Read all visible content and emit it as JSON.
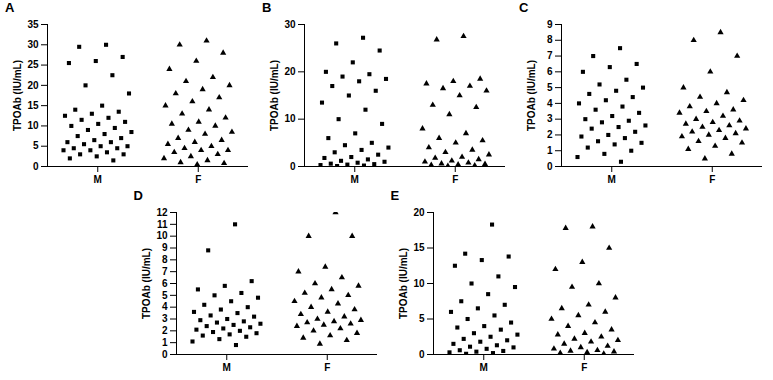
{
  "chart_data": [
    {
      "type": "scatter",
      "title": "A",
      "y_label": "TPOAb (IU/mL)",
      "ylim": [
        0,
        35
      ],
      "yticks": [
        0,
        5,
        10,
        15,
        20,
        25,
        30,
        35
      ],
      "series": [
        {
          "name": "M",
          "marker": "square",
          "color": "#000000",
          "values": [
            30,
            29.5,
            27,
            26,
            25.5,
            22.5,
            20,
            18,
            15,
            14,
            13.5,
            13,
            12.5,
            12,
            11.5,
            11,
            10.5,
            10,
            9.5,
            9,
            8.5,
            8,
            7.5,
            7,
            6.5,
            6,
            6,
            5.5,
            5,
            5,
            4.5,
            4.5,
            4,
            4,
            3.5,
            3,
            3,
            2.5,
            2,
            1.5
          ]
        },
        {
          "name": "F",
          "marker": "triangle",
          "color": "#000000",
          "values": [
            31,
            30,
            28,
            26,
            24,
            22,
            21,
            20,
            19,
            18,
            17,
            16,
            15,
            14,
            13,
            12,
            11,
            10.5,
            10,
            9,
            8.5,
            8,
            7,
            6.5,
            6,
            5.5,
            5,
            4.5,
            4,
            4,
            3.5,
            3,
            2.5,
            2,
            1.5,
            1,
            0.8,
            0.5
          ]
        }
      ]
    },
    {
      "type": "scatter",
      "title": "B",
      "y_label": "TPOAb (IU/mL)",
      "ylim": [
        0,
        30
      ],
      "yticks": [
        0,
        10,
        20,
        30
      ],
      "series": [
        {
          "name": "M",
          "marker": "square",
          "color": "#000000",
          "values": [
            27.2,
            26,
            24.5,
            22,
            20,
            19.5,
            19,
            18.5,
            18,
            17,
            16,
            15,
            13.5,
            12,
            10,
            9,
            7,
            6,
            5,
            4.5,
            4,
            3.5,
            3,
            2.5,
            2,
            1.8,
            1.5,
            1.2,
            1,
            0.8,
            0.6,
            0.5,
            0.4,
            0.3,
            0.2,
            0.1
          ]
        },
        {
          "name": "F",
          "marker": "triangle",
          "color": "#000000",
          "values": [
            27.5,
            26.8,
            18.5,
            18,
            17.5,
            17,
            16.5,
            16,
            15,
            13,
            12.5,
            11,
            8,
            7,
            6,
            5.5,
            5,
            4,
            3.5,
            3,
            2.5,
            2,
            1.8,
            1.5,
            1.2,
            1,
            0.8,
            0.6,
            0.5,
            0.4,
            0.3,
            0.2,
            0.1
          ]
        }
      ]
    },
    {
      "type": "scatter",
      "title": "C",
      "y_label": "TPOAb (IU/mL)",
      "ylim": [
        0,
        9
      ],
      "yticks": [
        0,
        1,
        2,
        3,
        4,
        5,
        6,
        7,
        8,
        9
      ],
      "series": [
        {
          "name": "M",
          "marker": "square",
          "color": "#000000",
          "values": [
            7.5,
            7,
            6.5,
            6.3,
            6,
            5.5,
            5.2,
            5,
            4.8,
            4.6,
            4.4,
            4.2,
            4,
            3.8,
            3.6,
            3.4,
            3.2,
            3,
            2.9,
            2.8,
            2.6,
            2.5,
            2.4,
            2.2,
            2,
            1.9,
            1.8,
            1.6,
            1.5,
            1.4,
            1.2,
            1,
            0.8,
            0.6,
            0.3
          ]
        },
        {
          "name": "F",
          "marker": "triangle",
          "color": "#000000",
          "values": [
            8.5,
            8,
            7,
            6,
            5,
            4.7,
            4.4,
            4.2,
            4,
            3.8,
            3.6,
            3.5,
            3.4,
            3.2,
            3,
            2.9,
            2.8,
            2.7,
            2.6,
            2.5,
            2.4,
            2.3,
            2.2,
            2.1,
            2,
            1.9,
            1.8,
            1.6,
            1.5,
            1.3,
            1.1,
            0.8,
            0.5
          ]
        }
      ]
    },
    {
      "type": "scatter",
      "title": "D",
      "y_label": "TPOAb (IU/mL)",
      "ylim": [
        0,
        12
      ],
      "yticks": [
        0,
        1,
        2,
        3,
        4,
        5,
        6,
        7,
        8,
        9,
        10,
        11,
        12
      ],
      "series": [
        {
          "name": "M",
          "marker": "square",
          "color": "#000000",
          "values": [
            11,
            8.8,
            6.2,
            5.8,
            5.5,
            5.2,
            5,
            4.8,
            4.5,
            4.2,
            4,
            3.8,
            3.6,
            3.5,
            3.3,
            3.2,
            3,
            2.9,
            2.8,
            2.7,
            2.6,
            2.5,
            2.4,
            2.3,
            2.2,
            2.1,
            2,
            1.9,
            1.8,
            1.7,
            1.6,
            1.5,
            1.3,
            1.1,
            0.8
          ]
        },
        {
          "name": "F",
          "marker": "triangle",
          "color": "#000000",
          "values": [
            12,
            10,
            10,
            7.4,
            7,
            6.5,
            6,
            5.8,
            5.5,
            5.2,
            5,
            4.8,
            4.5,
            4.3,
            4,
            3.8,
            3.6,
            3.4,
            3.2,
            3,
            2.9,
            2.8,
            2.7,
            2.6,
            2.5,
            2.4,
            2.2,
            2,
            1.8,
            1.6,
            1.4,
            1.2,
            0.9
          ]
        }
      ]
    },
    {
      "type": "scatter",
      "title": "E",
      "y_label": "TPOAb (IU/mL)",
      "ylim": [
        0,
        20
      ],
      "yticks": [
        0,
        5,
        10,
        15,
        20
      ],
      "series": [
        {
          "name": "M",
          "marker": "square",
          "color": "#000000",
          "values": [
            18.3,
            14.2,
            13.8,
            13.3,
            12.5,
            11,
            10,
            9.5,
            8.5,
            7.5,
            7,
            6.5,
            6,
            5.5,
            5,
            4.5,
            4,
            3.8,
            3.5,
            3,
            2.8,
            2.5,
            2.2,
            2,
            1.8,
            1.5,
            1.3,
            1.1,
            1,
            0.8,
            0.6,
            0.5,
            0.4,
            0.3,
            0.2,
            0.1
          ]
        },
        {
          "name": "F",
          "marker": "triangle",
          "color": "#000000",
          "values": [
            18,
            17.8,
            15,
            13,
            12,
            10,
            9.5,
            8,
            7,
            6.5,
            6,
            5.5,
            5,
            4.5,
            4,
            3.5,
            3,
            2.8,
            2.5,
            2.2,
            2,
            1.8,
            1.5,
            1.2,
            1,
            0.8,
            0.6,
            0.5,
            0.4,
            0.3,
            0.2,
            0.1
          ]
        }
      ]
    }
  ]
}
